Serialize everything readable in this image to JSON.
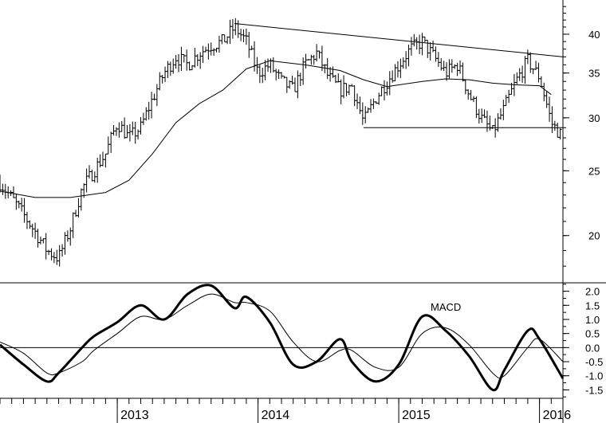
{
  "chart_data": [
    {
      "type": "ohlc",
      "panel": "price",
      "y_scale": "log",
      "ylim": [
        17,
        45
      ],
      "y_ticks": [
        20,
        25,
        30,
        35,
        40
      ],
      "x_axis_labels": [
        "2013",
        "2014",
        "2015",
        "2016"
      ],
      "x_range": [
        "2012-03",
        "2016-03"
      ],
      "price_path": [
        [
          "2012-03",
          24
        ],
        [
          "2012-05",
          21.5
        ],
        [
          "2012-07",
          19
        ],
        [
          "2012-08",
          18.5
        ],
        [
          "2012-09",
          20.5
        ],
        [
          "2012-10",
          23.5
        ],
        [
          "2012-11",
          25
        ],
        [
          "2012-12",
          26.5
        ],
        [
          "2013-01",
          29.5
        ],
        [
          "2013-02",
          28
        ],
        [
          "2013-03",
          29
        ],
        [
          "2013-04",
          32
        ],
        [
          "2013-05",
          35
        ],
        [
          "2013-06",
          37
        ],
        [
          "2013-07",
          36
        ],
        [
          "2013-08",
          37.5
        ],
        [
          "2013-09",
          38.5
        ],
        [
          "2013-10",
          39
        ],
        [
          "2013-11",
          41
        ],
        [
          "2013-12",
          39
        ],
        [
          "2014-01",
          35
        ],
        [
          "2014-02",
          36
        ],
        [
          "2014-03",
          34
        ],
        [
          "2014-04",
          33
        ],
        [
          "2014-05",
          36
        ],
        [
          "2014-06",
          37.5
        ],
        [
          "2014-07",
          34.5
        ],
        [
          "2014-08",
          33
        ],
        [
          "2014-09",
          33.5
        ],
        [
          "2014-10",
          29.5
        ],
        [
          "2014-11",
          32
        ],
        [
          "2014-12",
          34
        ],
        [
          "2015-01",
          36
        ],
        [
          "2015-02",
          38
        ],
        [
          "2015-03",
          39
        ],
        [
          "2015-04",
          37
        ],
        [
          "2015-05",
          35
        ],
        [
          "2015-06",
          36
        ],
        [
          "2015-07",
          32.5
        ],
        [
          "2015-08",
          30
        ],
        [
          "2015-09",
          28.5
        ],
        [
          "2015-10",
          31
        ],
        [
          "2015-11",
          34
        ],
        [
          "2015-12",
          36.5
        ],
        [
          "2016-01",
          34.5
        ],
        [
          "2016-02",
          29.5
        ],
        [
          "2016-03",
          28
        ]
      ],
      "moving_average_path": [
        [
          "2012-03",
          23.3
        ],
        [
          "2012-06",
          22.8
        ],
        [
          "2012-09",
          22.8
        ],
        [
          "2012-12",
          23.2
        ],
        [
          "2013-02",
          24.2
        ],
        [
          "2013-04",
          26.5
        ],
        [
          "2013-06",
          29.5
        ],
        [
          "2013-08",
          31.5
        ],
        [
          "2013-10",
          33
        ],
        [
          "2013-12",
          35.5
        ],
        [
          "2014-02",
          36.5
        ],
        [
          "2014-05",
          36
        ],
        [
          "2014-08",
          35.3
        ],
        [
          "2014-10",
          34.2
        ],
        [
          "2014-12",
          33.4
        ],
        [
          "2015-03",
          34
        ],
        [
          "2015-05",
          34.3
        ],
        [
          "2015-07",
          34.2
        ],
        [
          "2015-09",
          33.8
        ],
        [
          "2015-11",
          33.6
        ],
        [
          "2016-01",
          33.5
        ],
        [
          "2016-02",
          32.5
        ]
      ],
      "trendlines": [
        {
          "from": [
            "2013-11",
            41.5
          ],
          "to": [
            "2016-03",
            37
          ]
        },
        {
          "from": [
            "2014-10",
            29
          ],
          "to": [
            "2016-03",
            29
          ]
        }
      ]
    },
    {
      "type": "line",
      "panel": "macd",
      "title": "MACD",
      "ylim": [
        -1.8,
        2.3
      ],
      "y_ticks": [
        2.0,
        1.5,
        1.0,
        0.5,
        0.0,
        -0.5,
        -1.0,
        -1.5
      ],
      "y_tick_labels": [
        "2.0",
        "1.5",
        "1.0",
        "0.5",
        "0.0",
        "-0.5",
        "-1.0",
        "-1.5"
      ],
      "zero_line": 0,
      "series": [
        {
          "role": "macd",
          "values": [
            [
              "2012-03",
              0.1
            ],
            [
              "2012-05",
              -0.6
            ],
            [
              "2012-07",
              -1.2
            ],
            [
              "2012-08",
              -0.9
            ],
            [
              "2012-10",
              0.0
            ],
            [
              "2012-11",
              0.4
            ],
            [
              "2013-01",
              0.9
            ],
            [
              "2013-03",
              1.5
            ],
            [
              "2013-05",
              1.0
            ],
            [
              "2013-07",
              1.9
            ],
            [
              "2013-09",
              2.2
            ],
            [
              "2013-11",
              1.4
            ],
            [
              "2013-12",
              1.8
            ],
            [
              "2014-02",
              0.9
            ],
            [
              "2014-04",
              -0.6
            ],
            [
              "2014-06",
              -0.5
            ],
            [
              "2014-08",
              0.3
            ],
            [
              "2014-09",
              -0.5
            ],
            [
              "2014-11",
              -1.2
            ],
            [
              "2015-01",
              -0.6
            ],
            [
              "2015-03",
              1.1
            ],
            [
              "2015-05",
              0.6
            ],
            [
              "2015-07",
              -0.3
            ],
            [
              "2015-09",
              -1.5
            ],
            [
              "2015-10",
              -0.8
            ],
            [
              "2015-12",
              0.6
            ],
            [
              "2016-01",
              0.3
            ],
            [
              "2016-03",
              -1.1
            ]
          ]
        },
        {
          "role": "signal",
          "values": [
            [
              "2012-03",
              0.2
            ],
            [
              "2012-05",
              -0.2
            ],
            [
              "2012-07",
              -0.9
            ],
            [
              "2012-08",
              -0.9
            ],
            [
              "2012-10",
              -0.5
            ],
            [
              "2012-11",
              -0.1
            ],
            [
              "2013-01",
              0.5
            ],
            [
              "2013-03",
              1.1
            ],
            [
              "2013-05",
              1.0
            ],
            [
              "2013-07",
              1.5
            ],
            [
              "2013-09",
              1.9
            ],
            [
              "2013-11",
              1.6
            ],
            [
              "2013-12",
              1.6
            ],
            [
              "2014-02",
              1.3
            ],
            [
              "2014-04",
              0.2
            ],
            [
              "2014-06",
              -0.5
            ],
            [
              "2014-08",
              -0.1
            ],
            [
              "2014-09",
              -0.1
            ],
            [
              "2014-11",
              -0.7
            ],
            [
              "2015-01",
              -0.7
            ],
            [
              "2015-03",
              0.5
            ],
            [
              "2015-05",
              0.7
            ],
            [
              "2015-07",
              0.1
            ],
            [
              "2015-09",
              -0.9
            ],
            [
              "2015-10",
              -1.0
            ],
            [
              "2015-12",
              0.0
            ],
            [
              "2016-01",
              0.3
            ],
            [
              "2016-03",
              -0.5
            ]
          ]
        }
      ]
    }
  ]
}
